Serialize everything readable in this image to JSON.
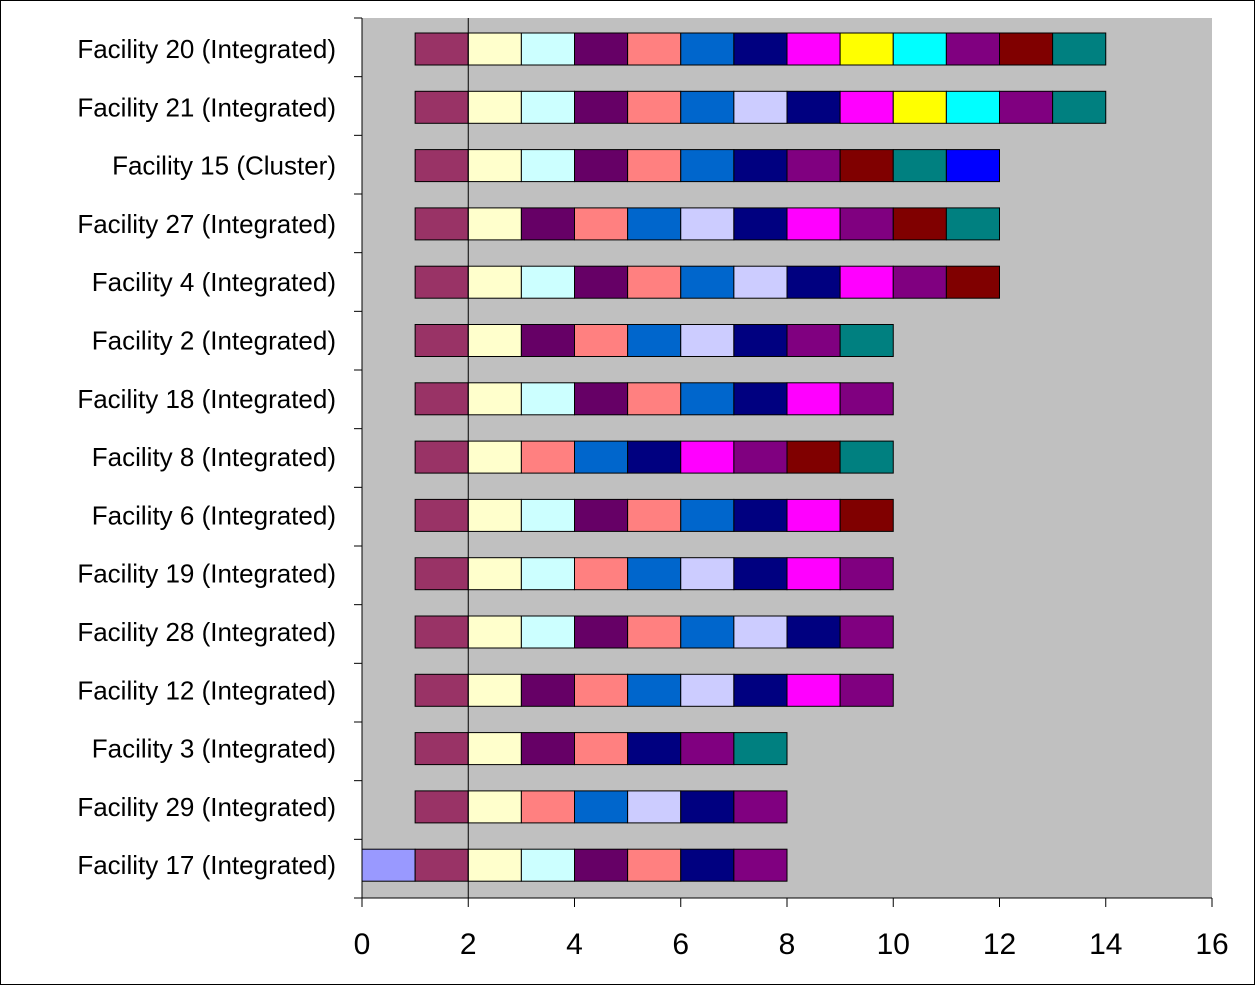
{
  "chart_data": {
    "type": "bar",
    "orientation": "horizontal",
    "stacked": true,
    "title": "",
    "xlabel": "",
    "ylabel": "",
    "xlim": [
      0,
      16
    ],
    "x_ticks": [
      0,
      2,
      4,
      6,
      8,
      10,
      12,
      14,
      16
    ],
    "reference_line_x": 2,
    "grid": false,
    "legend": "none",
    "plot_background": "#c0c0c0",
    "categories": [
      "Facility 20 (Integrated)",
      "Facility 21 (Integrated)",
      "Facility 15 (Cluster)",
      "Facility 27 (Integrated)",
      "Facility 4 (Integrated)",
      "Facility 2 (Integrated)",
      "Facility 18 (Integrated)",
      "Facility 8 (Integrated)",
      "Facility 6 (Integrated)",
      "Facility 19 (Integrated)",
      "Facility 28 (Integrated)",
      "Facility 12 (Integrated)",
      "Facility 3 (Integrated)",
      "Facility 29 (Integrated)",
      "Facility 17 (Integrated)"
    ],
    "bars": [
      {
        "start": 1,
        "segments": [
          "#993366",
          "#ffffcc",
          "#ccffff",
          "#660066",
          "#ff8080",
          "#0066cc",
          "#000080",
          "#ff00ff",
          "#ffff00",
          "#00ffff",
          "#800080",
          "#800000",
          "#008080"
        ]
      },
      {
        "start": 1,
        "segments": [
          "#993366",
          "#ffffcc",
          "#ccffff",
          "#660066",
          "#ff8080",
          "#0066cc",
          "#ccccff",
          "#000080",
          "#ff00ff",
          "#ffff00",
          "#00ffff",
          "#800080",
          "#008080"
        ]
      },
      {
        "start": 1,
        "segments": [
          "#993366",
          "#ffffcc",
          "#ccffff",
          "#660066",
          "#ff8080",
          "#0066cc",
          "#000080",
          "#800080",
          "#800000",
          "#008080",
          "#0000ff"
        ]
      },
      {
        "start": 1,
        "segments": [
          "#993366",
          "#ffffcc",
          "#660066",
          "#ff8080",
          "#0066cc",
          "#ccccff",
          "#000080",
          "#ff00ff",
          "#800080",
          "#800000",
          "#008080"
        ]
      },
      {
        "start": 1,
        "segments": [
          "#993366",
          "#ffffcc",
          "#ccffff",
          "#660066",
          "#ff8080",
          "#0066cc",
          "#ccccff",
          "#000080",
          "#ff00ff",
          "#800080",
          "#800000"
        ]
      },
      {
        "start": 1,
        "segments": [
          "#993366",
          "#ffffcc",
          "#660066",
          "#ff8080",
          "#0066cc",
          "#ccccff",
          "#000080",
          "#800080",
          "#008080"
        ]
      },
      {
        "start": 1,
        "segments": [
          "#993366",
          "#ffffcc",
          "#ccffff",
          "#660066",
          "#ff8080",
          "#0066cc",
          "#000080",
          "#ff00ff",
          "#800080"
        ]
      },
      {
        "start": 1,
        "segments": [
          "#993366",
          "#ffffcc",
          "#ff8080",
          "#0066cc",
          "#000080",
          "#ff00ff",
          "#800080",
          "#800000",
          "#008080"
        ]
      },
      {
        "start": 1,
        "segments": [
          "#993366",
          "#ffffcc",
          "#ccffff",
          "#660066",
          "#ff8080",
          "#0066cc",
          "#000080",
          "#ff00ff",
          "#800000"
        ]
      },
      {
        "start": 1,
        "segments": [
          "#993366",
          "#ffffcc",
          "#ccffff",
          "#ff8080",
          "#0066cc",
          "#ccccff",
          "#000080",
          "#ff00ff",
          "#800080"
        ]
      },
      {
        "start": 1,
        "segments": [
          "#993366",
          "#ffffcc",
          "#ccffff",
          "#660066",
          "#ff8080",
          "#0066cc",
          "#ccccff",
          "#000080",
          "#800080"
        ]
      },
      {
        "start": 1,
        "segments": [
          "#993366",
          "#ffffcc",
          "#660066",
          "#ff8080",
          "#0066cc",
          "#ccccff",
          "#000080",
          "#ff00ff",
          "#800080"
        ]
      },
      {
        "start": 1,
        "segments": [
          "#993366",
          "#ffffcc",
          "#660066",
          "#ff8080",
          "#000080",
          "#800080",
          "#008080"
        ]
      },
      {
        "start": 1,
        "segments": [
          "#993366",
          "#ffffcc",
          "#ff8080",
          "#0066cc",
          "#ccccff",
          "#000080",
          "#800080"
        ]
      },
      {
        "start": 0,
        "segments": [
          "#9999ff",
          "#993366",
          "#ffffcc",
          "#ccffff",
          "#660066",
          "#ff8080",
          "#000080",
          "#800080"
        ]
      }
    ]
  }
}
